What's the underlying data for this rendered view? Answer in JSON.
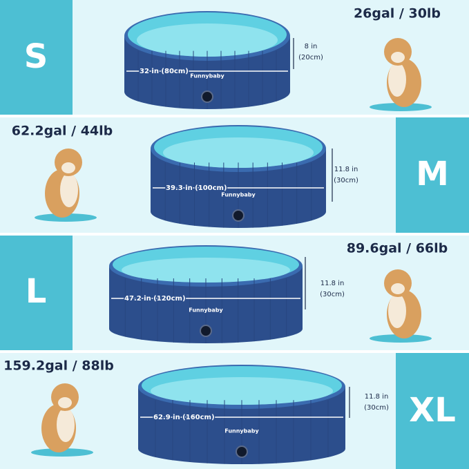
{
  "sizes": [
    {
      "label": "S",
      "capacity": "26gal / 30lb",
      "diameter": "32 in (80cm)",
      "height": "8 in",
      "height_cm": "(20cm)",
      "brand": "Funnybaby"
    },
    {
      "label": "M",
      "capacity": "62.2gal / 44lb",
      "diameter": "39.3 in (100cm)",
      "height": "11.8 in",
      "height_cm": "(30cm)",
      "brand": "Funnybaby"
    },
    {
      "label": "L",
      "capacity": "89.6gal / 66lb",
      "diameter": "47.2 in (120cm)",
      "height": "11.8 in",
      "height_cm": "(30cm)",
      "brand": "Funnybaby"
    },
    {
      "label": "XL",
      "capacity": "159.2gal / 88lb",
      "diameter": "62.9 in (160cm)",
      "height": "11.8 in",
      "height_cm": "(30cm)",
      "brand": "Funnybaby"
    }
  ]
}
